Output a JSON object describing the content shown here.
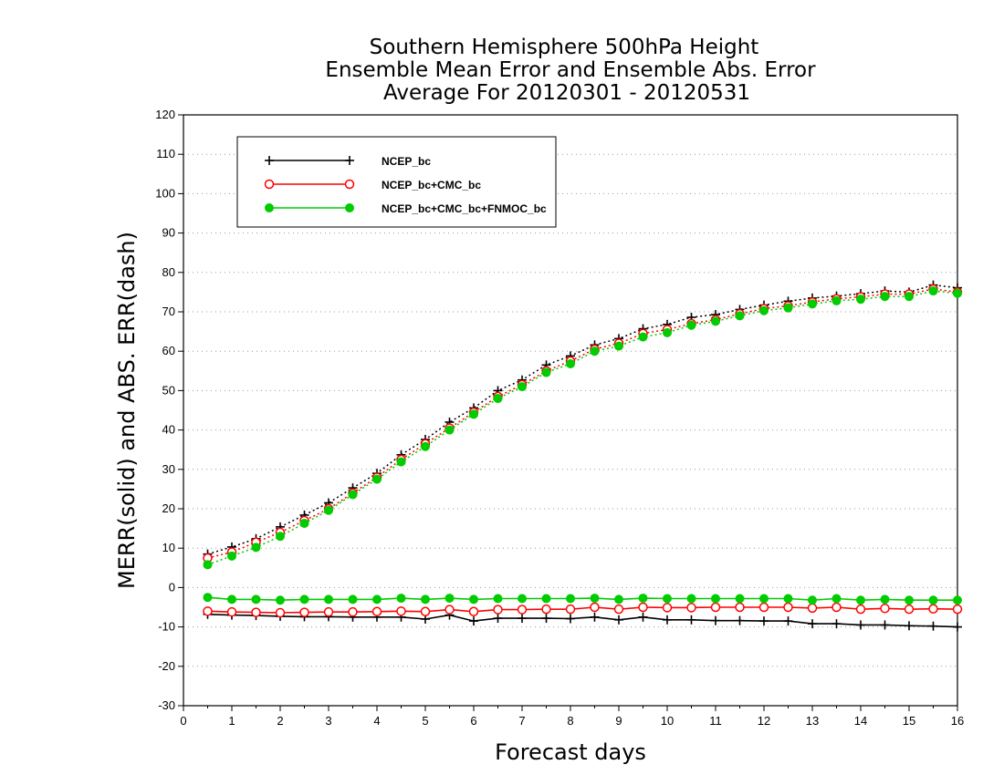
{
  "chart_data": {
    "type": "line",
    "title": [
      "Southern Hemisphere 500hPa Height",
      "Ensemble Mean Error and Ensemble Abs. Error",
      "Average For 20120301 - 20120531"
    ],
    "xlabel": "Forecast days",
    "ylabel": "MERR(solid) and ABS. ERR(dash)",
    "xlim": [
      0,
      16
    ],
    "ylim": [
      -30,
      120
    ],
    "x_ticks": [
      0,
      1,
      2,
      3,
      4,
      5,
      6,
      7,
      8,
      9,
      10,
      11,
      12,
      13,
      14,
      15,
      16
    ],
    "y_ticks": [
      -30,
      -20,
      -10,
      0,
      10,
      20,
      30,
      40,
      50,
      60,
      70,
      80,
      90,
      100,
      110,
      120
    ],
    "grid": "horizontal-dotted",
    "legend_position": "top-left",
    "x": [
      0.5,
      1,
      1.5,
      2,
      2.5,
      3,
      3.5,
      4,
      4.5,
      5,
      5.5,
      6,
      6.5,
      7,
      7.5,
      8,
      8.5,
      9,
      9.5,
      10,
      10.5,
      11,
      11.5,
      12,
      12.5,
      13,
      13.5,
      14,
      14.5,
      15,
      15.5,
      16
    ],
    "series": [
      {
        "name": "NCEP_bc",
        "color": "#000000",
        "marker": "plus",
        "merr": [
          -6.8,
          -7.0,
          -7.1,
          -7.3,
          -7.4,
          -7.4,
          -7.5,
          -7.5,
          -7.5,
          -8.0,
          -7.0,
          -8.5,
          -7.8,
          -7.8,
          -7.8,
          -7.9,
          -7.5,
          -8.2,
          -7.5,
          -8.2,
          -8.2,
          -8.4,
          -8.4,
          -8.5,
          -8.5,
          -9.2,
          -9.2,
          -9.5,
          -9.5,
          -9.7,
          -9.8,
          -10.0
        ],
        "abs_err": [
          8.5,
          10.3,
          12.4,
          15.4,
          18.4,
          21.5,
          25.3,
          29.0,
          33.7,
          37.6,
          42.0,
          45.6,
          50.0,
          52.7,
          56.5,
          58.8,
          61.6,
          63.2,
          65.7,
          66.8,
          68.6,
          69.3,
          70.6,
          71.7,
          72.7,
          73.5,
          74.0,
          74.6,
          75.3,
          75.0,
          76.8,
          76.1
        ]
      },
      {
        "name": "NCEP_bc+CMC_bc",
        "color": "#ff0000",
        "marker": "open-circle",
        "merr": [
          -6.0,
          -6.2,
          -6.3,
          -6.4,
          -6.3,
          -6.2,
          -6.2,
          -6.1,
          -6.0,
          -6.1,
          -5.6,
          -6.1,
          -5.6,
          -5.6,
          -5.5,
          -5.5,
          -5.0,
          -5.5,
          -5.0,
          -5.1,
          -5.1,
          -5.0,
          -5.0,
          -5.0,
          -5.0,
          -5.2,
          -5.0,
          -5.5,
          -5.3,
          -5.5,
          -5.4,
          -5.5
        ],
        "abs_err": [
          7.5,
          9.0,
          11.5,
          14.0,
          17.0,
          20.0,
          24.0,
          28.0,
          32.5,
          36.5,
          40.5,
          44.5,
          48.5,
          51.5,
          55.0,
          57.5,
          60.5,
          62.0,
          64.5,
          65.5,
          67.0,
          68.0,
          69.5,
          70.8,
          71.5,
          72.5,
          73.3,
          73.8,
          74.5,
          74.5,
          75.8,
          75.0
        ]
      },
      {
        "name": "NCEP_bc+CMC_bc+FNMOC_bc",
        "color": "#00cc00",
        "marker": "filled-circle",
        "merr": [
          -2.5,
          -3.0,
          -3.0,
          -3.2,
          -3.0,
          -3.0,
          -3.0,
          -3.0,
          -2.7,
          -3.0,
          -2.7,
          -3.0,
          -2.8,
          -2.8,
          -2.8,
          -2.8,
          -2.7,
          -3.0,
          -2.7,
          -2.8,
          -2.8,
          -2.8,
          -2.8,
          -2.8,
          -2.8,
          -3.2,
          -2.8,
          -3.2,
          -3.0,
          -3.2,
          -3.2,
          -3.2
        ],
        "abs_err": [
          5.8,
          8.0,
          10.2,
          13.0,
          16.3,
          19.6,
          23.6,
          27.5,
          31.9,
          35.8,
          40.0,
          44.0,
          48.0,
          51.0,
          54.6,
          56.8,
          60.0,
          61.3,
          63.6,
          64.7,
          66.6,
          67.6,
          69.0,
          70.3,
          71.0,
          72.0,
          72.8,
          73.2,
          73.9,
          73.9,
          75.3,
          74.7
        ]
      }
    ]
  }
}
